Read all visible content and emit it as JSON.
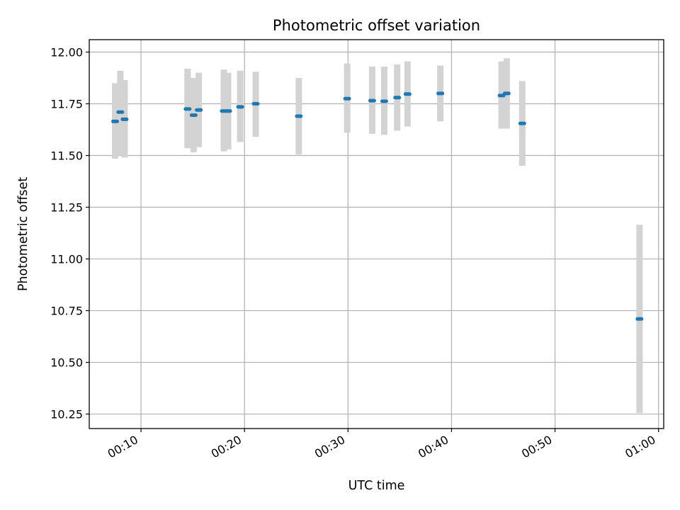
{
  "chart_data": {
    "type": "scatter",
    "title": "Photometric offset variation",
    "xlabel": "UTC time",
    "ylabel": "Photometric offset",
    "xlim": [
      "00:05:00",
      "01:00:30"
    ],
    "ylim": [
      10.18,
      12.06
    ],
    "xticks": [
      "00:10",
      "00:20",
      "00:30",
      "00:40",
      "00:50",
      "01:00"
    ],
    "yticks": [
      "10.25",
      "10.50",
      "10.75",
      "11.00",
      "11.25",
      "11.50",
      "11.75",
      "12.00"
    ],
    "grid": true,
    "colors": {
      "marker": "#1f77b4",
      "errorbar": "#d3d3d3"
    },
    "points": [
      {
        "t": "00:07:30",
        "y": 11.665,
        "lo": 11.485,
        "hi": 11.85
      },
      {
        "t": "00:08:00",
        "y": 11.71,
        "lo": 11.5,
        "hi": 11.91
      },
      {
        "t": "00:08:25",
        "y": 11.675,
        "lo": 11.49,
        "hi": 11.865
      },
      {
        "t": "00:14:30",
        "y": 11.725,
        "lo": 11.535,
        "hi": 11.92
      },
      {
        "t": "00:15:05",
        "y": 11.695,
        "lo": 11.515,
        "hi": 11.875
      },
      {
        "t": "00:15:35",
        "y": 11.72,
        "lo": 11.54,
        "hi": 11.9
      },
      {
        "t": "00:18:00",
        "y": 11.715,
        "lo": 11.52,
        "hi": 11.915
      },
      {
        "t": "00:18:25",
        "y": 11.715,
        "lo": 11.53,
        "hi": 11.9
      },
      {
        "t": "00:19:35",
        "y": 11.735,
        "lo": 11.565,
        "hi": 11.91
      },
      {
        "t": "00:21:05",
        "y": 11.75,
        "lo": 11.59,
        "hi": 11.905
      },
      {
        "t": "00:25:15",
        "y": 11.69,
        "lo": 11.505,
        "hi": 11.875
      },
      {
        "t": "00:29:55",
        "y": 11.775,
        "lo": 11.61,
        "hi": 11.945
      },
      {
        "t": "00:32:20",
        "y": 11.765,
        "lo": 11.605,
        "hi": 11.93
      },
      {
        "t": "00:33:30",
        "y": 11.762,
        "lo": 11.6,
        "hi": 11.93
      },
      {
        "t": "00:34:45",
        "y": 11.78,
        "lo": 11.62,
        "hi": 11.94
      },
      {
        "t": "00:35:45",
        "y": 11.797,
        "lo": 11.64,
        "hi": 11.955
      },
      {
        "t": "00:38:55",
        "y": 11.8,
        "lo": 11.665,
        "hi": 11.935
      },
      {
        "t": "00:44:50",
        "y": 11.79,
        "lo": 11.63,
        "hi": 11.955
      },
      {
        "t": "00:45:20",
        "y": 11.8,
        "lo": 11.63,
        "hi": 11.97
      },
      {
        "t": "00:46:50",
        "y": 11.655,
        "lo": 11.45,
        "hi": 11.86
      },
      {
        "t": "00:58:10",
        "y": 10.71,
        "lo": 10.255,
        "hi": 11.165
      }
    ]
  }
}
